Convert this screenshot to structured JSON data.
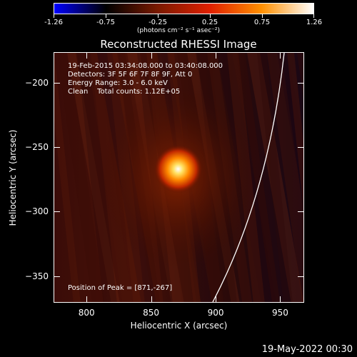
{
  "colorbar": {
    "tick_labels": [
      "-1.26",
      "-0.75",
      "-0.25",
      "0.25",
      "0.75",
      "1.26"
    ],
    "units": "(photons cm⁻² s⁻¹ asec⁻²)",
    "colors": [
      "#0000ff",
      "#000000",
      "#7a1a00",
      "#e02000",
      "#ff9000",
      "#ffffff"
    ]
  },
  "title": "Reconstructed RHESSI Image",
  "info": {
    "time_range": "19-Feb-2015 03:34:08.000 to 03:40:08.000",
    "detectors": "Detectors: 3F 5F 6F 7F 8F 9F, Att 0",
    "energy_range": "Energy Range: 3.0 - 6.0 keV",
    "clean_counts": "Clean    Total counts: 1.12E+05"
  },
  "peak_text": "Position of Peak = [871,-267]",
  "axes": {
    "xlabel": "Heliocentric X (arcsec)",
    "ylabel": "Heliocentric Y (arcsec)",
    "xlim": [
      775,
      968
    ],
    "ylim": [
      -370,
      -177
    ],
    "xticks": [
      800,
      850,
      900,
      950
    ],
    "yticks": [
      -200,
      -250,
      -300,
      -350
    ]
  },
  "image_data": {
    "peak_position": [
      871,
      -267
    ]
  },
  "footer_date": "19-May-2022 00:30"
}
